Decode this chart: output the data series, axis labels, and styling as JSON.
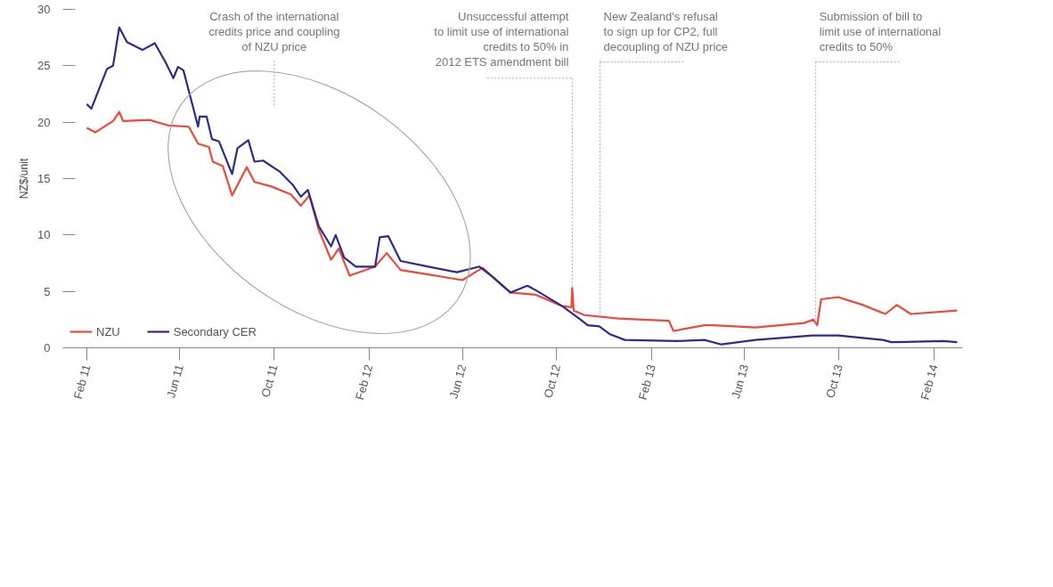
{
  "chart_data": {
    "type": "line",
    "ylabel": "NZ$/unit",
    "ylim": [
      0,
      30
    ],
    "yticks": [
      0,
      5,
      10,
      15,
      20,
      25,
      30
    ],
    "xlim": [
      "2011-01-01",
      "2014-03-10"
    ],
    "xticks": [
      {
        "value": "2011-02-01",
        "label": "Feb 11"
      },
      {
        "value": "2011-06-01",
        "label": "Jun 11"
      },
      {
        "value": "2011-10-01",
        "label": "Oct 11"
      },
      {
        "value": "2012-02-01",
        "label": "Feb 12"
      },
      {
        "value": "2012-06-01",
        "label": "Jun 12"
      },
      {
        "value": "2012-10-01",
        "label": "Oct 12"
      },
      {
        "value": "2013-02-01",
        "label": "Feb 13"
      },
      {
        "value": "2013-06-01",
        "label": "Jun 13"
      },
      {
        "value": "2013-10-01",
        "label": "Oct 13"
      },
      {
        "value": "2014-02-01",
        "label": "Feb 14"
      }
    ],
    "grid": false,
    "legend": "bottom left",
    "line_style": "solid",
    "series": [
      {
        "name": "NZU",
        "color": "#f0483a",
        "x": [
          "2011-02-01",
          "2011-02-12",
          "2011-03-07",
          "2011-03-15",
          "2011-03-20",
          "2011-04-23",
          "2011-05-18",
          "2011-06-13",
          "2011-06-25",
          "2011-07-09",
          "2011-07-14",
          "2011-07-27",
          "2011-08-08",
          "2011-08-27",
          "2011-09-06",
          "2011-09-28",
          "2011-10-23",
          "2011-11-05",
          "2011-11-16",
          "2011-11-28",
          "2011-12-14",
          "2011-12-24",
          "2012-01-07",
          "2012-02-09",
          "2012-02-24",
          "2012-03-13",
          "2012-04-18",
          "2012-06-01",
          "2012-06-27",
          "2012-08-02",
          "2012-09-04",
          "2012-10-08",
          "2012-10-20",
          "2012-10-21",
          "2012-10-23",
          "2012-11-06",
          "2012-12-20",
          "2013-02-23",
          "2013-03-01",
          "2013-04-10",
          "2013-04-21",
          "2013-06-15",
          "2013-08-17",
          "2013-08-29",
          "2013-09-03",
          "2013-09-08",
          "2013-09-30",
          "2013-11-01",
          "2013-11-30",
          "2013-12-15",
          "2014-01-02",
          "2014-03-03"
        ],
        "values": [
          19.5,
          19.1,
          20.1,
          20.9,
          20.1,
          20.2,
          19.7,
          19.6,
          18.1,
          17.8,
          16.5,
          16.1,
          13.5,
          16.0,
          14.7,
          14.3,
          13.6,
          12.6,
          13.5,
          10.5,
          7.8,
          8.8,
          6.4,
          7.2,
          8.4,
          6.9,
          6.5,
          6.0,
          7.1,
          4.9,
          4.7,
          3.7,
          3.6,
          5.3,
          3.3,
          2.9,
          2.6,
          2.4,
          1.5,
          2.0,
          2.0,
          1.8,
          2.2,
          2.5,
          2.0,
          4.3,
          4.5,
          3.8,
          3.0,
          3.8,
          3.0,
          3.3
        ]
      },
      {
        "name": "Secondary CER",
        "color": "#2b2d8c",
        "x": [
          "2011-02-01",
          "2011-02-07",
          "2011-02-27",
          "2011-03-07",
          "2011-03-15",
          "2011-03-25",
          "2011-04-14",
          "2011-04-30",
          "2011-05-14",
          "2011-05-24",
          "2011-05-30",
          "2011-06-06",
          "2011-06-19",
          "2011-06-25",
          "2011-06-27",
          "2011-07-06",
          "2011-07-13",
          "2011-07-22",
          "2011-08-08",
          "2011-08-15",
          "2011-08-29",
          "2011-09-06",
          "2011-09-17",
          "2011-10-09",
          "2011-10-26",
          "2011-11-05",
          "2011-11-14",
          "2011-11-28",
          "2011-12-14",
          "2011-12-20",
          "2011-12-31",
          "2012-01-15",
          "2012-02-09",
          "2012-02-15",
          "2012-02-26",
          "2012-03-13",
          "2012-04-18",
          "2012-05-25",
          "2012-06-23",
          "2012-07-08",
          "2012-08-02",
          "2012-08-24",
          "2012-09-04",
          "2012-10-08",
          "2012-10-30",
          "2012-11-10",
          "2012-11-25",
          "2012-12-09",
          "2012-12-28",
          "2013-03-05",
          "2013-04-10",
          "2013-05-02",
          "2013-06-15",
          "2013-08-28",
          "2013-09-30",
          "2013-11-27",
          "2013-12-08",
          "2014-02-13",
          "2014-03-03"
        ],
        "values": [
          21.6,
          21.2,
          24.7,
          25.0,
          28.4,
          27.1,
          26.4,
          27.0,
          25.3,
          23.9,
          24.9,
          24.6,
          21.2,
          19.6,
          20.5,
          20.5,
          18.5,
          18.3,
          15.4,
          17.7,
          18.4,
          16.5,
          16.6,
          15.6,
          14.4,
          13.4,
          14.0,
          10.8,
          9.0,
          10.0,
          8.0,
          7.2,
          7.2,
          9.8,
          9.9,
          7.7,
          7.2,
          6.7,
          7.2,
          6.4,
          4.9,
          5.5,
          5.1,
          3.7,
          2.6,
          2.0,
          1.9,
          1.2,
          0.7,
          0.6,
          0.7,
          0.3,
          0.7,
          1.1,
          1.1,
          0.7,
          0.5,
          0.6,
          0.5
        ]
      }
    ],
    "annotations": [
      "Crash of the international\ncredits price and coupling\nof NZU price",
      {
        "text": "Unsuccessful attempt\nto limit use of international\ncredits to 50% in\n2012 ETS amendment bill",
        "x": "2012-10-21",
        "y": 5.3
      },
      {
        "text": "New Zealand's refusal\nto sign up for CP2, full\ndecoupling of NZU price",
        "x": "2012-11-26",
        "y": 2.9
      },
      {
        "text": "Submission of bill to\nlimit use of international\ncredits to 50%",
        "x": "2013-09-01",
        "y": 2.2
      }
    ]
  }
}
